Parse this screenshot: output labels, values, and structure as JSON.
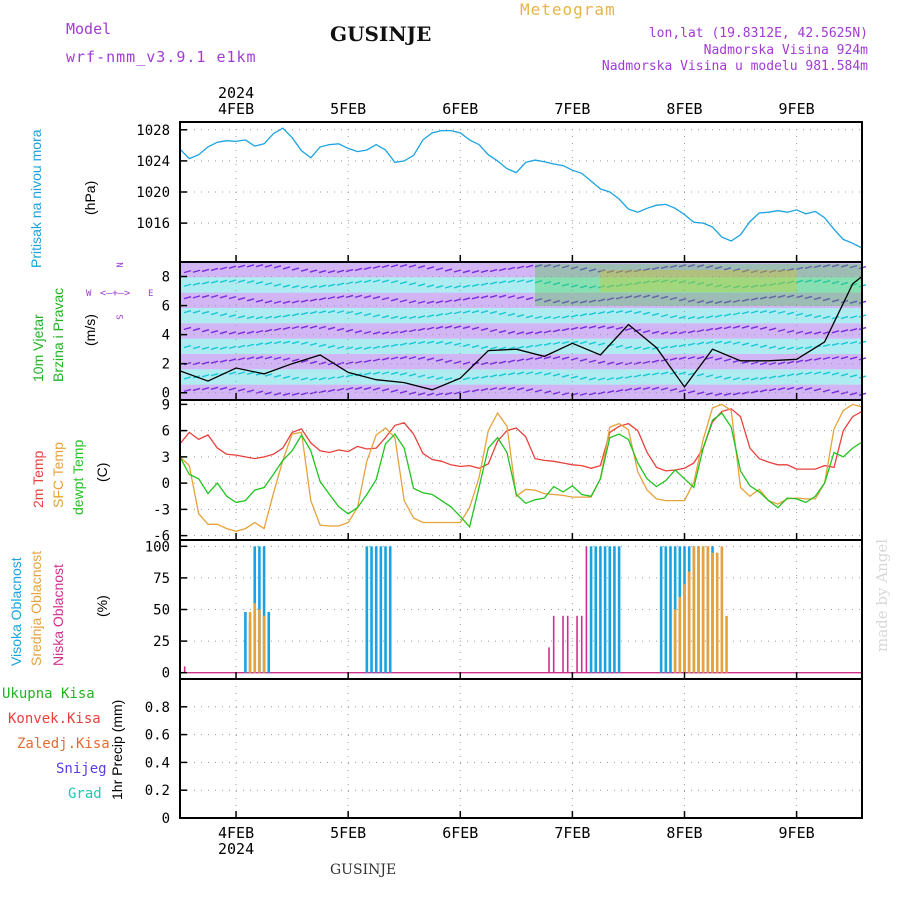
{
  "header": {
    "model_label": "Model",
    "model_name": "wrf-nmm_v3.9.1  e1km",
    "title": "GUSINJE",
    "meteogram_label": "Meteogram",
    "lonlat": "lon,lat (19.8312E, 42.5625N)",
    "altitude": "Nadmorska Visina 924m",
    "model_altitude": "Nadmorska Visina u modelu 981.584m",
    "footer_title": "GUSINJE",
    "credit": "made by Angel"
  },
  "compass": {
    "north": "N",
    "south": "S",
    "east": "E",
    "west": "W"
  },
  "colors": {
    "pressure": "#1aa3e0",
    "temp2m": "#e8413c",
    "sfc": "#e6a23c",
    "dew": "#22c322",
    "high": "#1aa3e0",
    "mid": "#e6a23c",
    "low": "#d0308c",
    "total": "#22b322",
    "convective": "#e8413c",
    "freezing": "#e66b2e",
    "snow": "#5a3de8",
    "hail": "#1ec8b4",
    "wind_low": "#7a2be0",
    "wind_mid": "#19c8d8",
    "wind_high": "#3cc83c",
    "wind_max": "#d8c81e"
  },
  "axis": {
    "year": "2024",
    "days": [
      "4FEB",
      "5FEB",
      "6FEB",
      "7FEB",
      "8FEB",
      "9FEB"
    ]
  },
  "panels": {
    "pressure": {
      "label_1": "Pritisak na nivou mora",
      "unit": "(hPa)"
    },
    "wind": {
      "label_1": "10m Vjetar",
      "label_2": "Brzina i Pravac",
      "unit": "(m/s)"
    },
    "temp": {
      "label_1": "2m Temp",
      "label_2": "SFC Temp",
      "label_3": "dewpt Temp",
      "unit": "(C)"
    },
    "cloud": {
      "label_1": "Visoka Oblacnost",
      "label_2": "Srednja Oblacnost",
      "label_3": "Niska Oblacnost",
      "unit": "(%)"
    },
    "precip": {
      "label_total": "Ukupna Kisa",
      "label_conv": "Konvek.Kisa",
      "label_freeze": "Zaledj.Kisa",
      "label_snow": "Snijeg",
      "label_hail": "Grad",
      "unit": "1hr Precip (mm)"
    }
  },
  "chart_data": [
    {
      "type": "line",
      "panel": "pressure",
      "x_unit": "hours from 3FEB 12:00",
      "ylabel": "(hPa)",
      "ylim": [
        1011,
        1029
      ],
      "yticks": [
        1016,
        1020,
        1024,
        1028
      ],
      "series": [
        {
          "name": "Pritisak na nivou mora",
          "x": [
            0,
            2,
            4,
            6,
            8,
            10,
            12,
            14,
            16,
            18,
            20,
            22,
            24,
            26,
            28,
            30,
            32,
            34,
            36,
            38,
            40,
            42,
            44,
            46,
            48,
            50,
            52,
            54,
            56,
            58,
            60,
            62,
            64,
            66,
            68,
            70,
            72,
            74,
            76,
            78,
            80,
            82,
            84,
            86,
            88,
            90,
            92,
            94,
            96,
            98,
            100,
            102,
            104,
            106,
            108,
            110,
            112,
            114,
            116,
            118,
            120,
            122,
            124,
            126,
            128,
            130,
            132,
            134,
            136,
            138,
            140,
            142,
            144,
            146
          ],
          "values": [
            1025.5,
            1024.3,
            1024.8,
            1025.8,
            1026.4,
            1026.6,
            1026.5,
            1026.7,
            1025.9,
            1026.2,
            1027.5,
            1028.2,
            1027.0,
            1025.3,
            1024.4,
            1025.8,
            1026.1,
            1026.2,
            1025.6,
            1025.2,
            1025.4,
            1026.1,
            1025.4,
            1023.8,
            1024.0,
            1024.7,
            1026.7,
            1027.6,
            1027.9,
            1027.9,
            1027.6,
            1026.7,
            1026.1,
            1024.8,
            1024.0,
            1023.0,
            1022.5,
            1023.8,
            1024.1,
            1023.9,
            1023.6,
            1023.4,
            1022.8,
            1022.4,
            1021.4,
            1020.4,
            1020.0,
            1019.1,
            1017.8,
            1017.4,
            1017.9,
            1018.3,
            1018.4,
            1017.9,
            1017.1,
            1016.1,
            1016.0,
            1015.5,
            1014.2,
            1013.7,
            1014.5,
            1016.2,
            1017.3,
            1017.4,
            1017.6,
            1017.4,
            1017.7,
            1017.2,
            1017.5,
            1016.7,
            1015.2,
            1013.9,
            1013.4,
            1012.8
          ]
        }
      ]
    },
    {
      "type": "line",
      "panel": "wind",
      "x_unit": "hours from 3FEB 12:00",
      "ylabel": "(m/s)",
      "ylim": [
        -0.5,
        9
      ],
      "yticks": [
        0,
        2,
        4,
        6,
        8
      ],
      "series": [
        {
          "name": "10m Vjetar",
          "x": [
            0,
            6,
            12,
            18,
            24,
            30,
            36,
            42,
            48,
            54,
            60,
            66,
            72,
            78,
            84,
            90,
            96,
            102,
            108,
            114,
            120,
            126,
            132,
            138,
            144,
            146
          ],
          "values": [
            1.5,
            0.8,
            1.7,
            1.3,
            2.0,
            2.6,
            1.4,
            0.9,
            0.7,
            0.2,
            1.0,
            2.9,
            3.0,
            2.5,
            3.4,
            2.6,
            4.7,
            3.1,
            0.4,
            3.0,
            2.2,
            2.2,
            2.3,
            3.5,
            7.5,
            8.0
          ]
        }
      ]
    },
    {
      "type": "line",
      "panel": "temp",
      "x_unit": "hours from 3FEB 12:00",
      "ylabel": "(C)",
      "ylim": [
        -6.5,
        9.5
      ],
      "yticks": [
        -6,
        -3,
        0,
        3,
        6,
        9
      ],
      "series": [
        {
          "name": "2m Temp",
          "x": [
            0,
            2,
            4,
            6,
            8,
            10,
            12,
            14,
            16,
            18,
            20,
            22,
            24,
            26,
            28,
            30,
            32,
            34,
            36,
            38,
            40,
            42,
            44,
            46,
            48,
            50,
            52,
            54,
            56,
            58,
            60,
            62,
            64,
            66,
            68,
            70,
            72,
            74,
            76,
            78,
            80,
            82,
            84,
            86,
            88,
            90,
            92,
            94,
            96,
            98,
            100,
            102,
            104,
            106,
            108,
            110,
            112,
            114,
            116,
            118,
            120,
            122,
            124,
            126,
            128,
            130,
            132,
            134,
            136,
            138,
            140,
            142,
            144,
            146
          ],
          "values": [
            4.5,
            5.8,
            5.0,
            5.5,
            4.0,
            3.3,
            3.2,
            3.0,
            2.8,
            3.0,
            3.3,
            4.0,
            5.8,
            6.2,
            4.6,
            3.7,
            3.5,
            3.8,
            3.6,
            4.2,
            3.9,
            4.0,
            5.2,
            6.6,
            6.9,
            5.6,
            3.4,
            2.7,
            2.5,
            2.1,
            1.9,
            2.0,
            1.7,
            2.2,
            4.8,
            6.0,
            6.3,
            5.3,
            2.8,
            2.6,
            2.5,
            2.3,
            2.1,
            2.0,
            1.7,
            2.0,
            5.8,
            6.5,
            6.8,
            6.0,
            3.5,
            1.8,
            1.4,
            1.5,
            1.7,
            2.3,
            4.0,
            7.0,
            8.2,
            8.5,
            7.6,
            4.0,
            2.8,
            2.4,
            2.1,
            2.1,
            1.6,
            1.6,
            1.6,
            2.0,
            1.8,
            6.0,
            7.6,
            8.2
          ]
        },
        {
          "name": "SFC Temp",
          "x": [
            0,
            2,
            4,
            6,
            8,
            10,
            12,
            14,
            16,
            18,
            20,
            22,
            24,
            26,
            28,
            30,
            32,
            34,
            36,
            38,
            40,
            42,
            44,
            46,
            48,
            50,
            52,
            54,
            56,
            58,
            60,
            62,
            64,
            66,
            68,
            70,
            72,
            74,
            76,
            78,
            80,
            82,
            84,
            86,
            88,
            90,
            92,
            94,
            96,
            98,
            100,
            102,
            104,
            106,
            108,
            110,
            112,
            114,
            116,
            118,
            120,
            122,
            124,
            126,
            128,
            130,
            132,
            134,
            136,
            138,
            140,
            142,
            144,
            146
          ],
          "values": [
            3.0,
            2.0,
            -3.5,
            -4.7,
            -4.7,
            -5.2,
            -5.5,
            -5.2,
            -4.5,
            -5.2,
            -1.2,
            2.6,
            5.6,
            5.8,
            -2.0,
            -4.8,
            -4.9,
            -4.9,
            -4.5,
            -2.8,
            2.5,
            5.5,
            6.3,
            5.2,
            -2.0,
            -4.0,
            -4.5,
            -4.5,
            -4.5,
            -4.5,
            -4.5,
            -2.8,
            0.6,
            6.0,
            8.0,
            6.5,
            -1.5,
            -0.7,
            -0.8,
            -1.2,
            -1.3,
            -1.4,
            -1.6,
            -1.6,
            -1.6,
            0.5,
            6.4,
            6.8,
            6.1,
            1.3,
            -0.8,
            -1.8,
            -2.0,
            -2.0,
            -2.0,
            0.1,
            5.0,
            8.6,
            9.0,
            8.3,
            -0.5,
            -1.5,
            -0.7,
            -2.0,
            -2.4,
            -1.8,
            -1.7,
            -1.8,
            -1.8,
            0.0,
            6.2,
            8.3,
            9.0,
            8.7
          ]
        },
        {
          "name": "dewpt Temp",
          "x": [
            0,
            2,
            4,
            6,
            8,
            10,
            12,
            14,
            16,
            18,
            20,
            22,
            24,
            26,
            28,
            30,
            32,
            34,
            36,
            38,
            40,
            42,
            44,
            46,
            48,
            50,
            52,
            54,
            56,
            58,
            60,
            62,
            64,
            66,
            68,
            70,
            72,
            74,
            76,
            78,
            80,
            82,
            84,
            86,
            88,
            90,
            92,
            94,
            96,
            98,
            100,
            102,
            104,
            106,
            108,
            110,
            112,
            114,
            116,
            118,
            120,
            122,
            124,
            126,
            128,
            130,
            132,
            134,
            136,
            138,
            140,
            142,
            144,
            146
          ],
          "values": [
            3.0,
            1.0,
            0.5,
            -1.2,
            0.0,
            -1.5,
            -2.2,
            -2.0,
            -0.8,
            -0.5,
            1.0,
            2.6,
            3.7,
            5.5,
            3.7,
            0.2,
            -1.3,
            -2.7,
            -3.5,
            -2.8,
            -1.3,
            0.4,
            4.5,
            5.6,
            4.0,
            -0.6,
            -1.1,
            -1.3,
            -2.0,
            -2.7,
            -3.8,
            -5.0,
            -0.5,
            4.0,
            5.2,
            3.5,
            -1.3,
            -2.3,
            -1.9,
            -1.7,
            -0.4,
            -1.0,
            -0.3,
            -1.3,
            -1.5,
            0.5,
            5.2,
            5.6,
            5.0,
            2.3,
            0.5,
            -0.4,
            0.3,
            1.5,
            0.5,
            -0.5,
            4.0,
            7.2,
            8.0,
            6.4,
            1.4,
            -0.3,
            -1.0,
            -2.0,
            -2.8,
            -1.7,
            -1.8,
            -2.2,
            -1.5,
            0.0,
            3.5,
            3.0,
            4.0,
            4.7
          ]
        }
      ]
    },
    {
      "type": "bar",
      "panel": "cloud",
      "x_unit": "hours from 3FEB 12:00",
      "ylabel": "(%)",
      "ylim": [
        -5,
        105
      ],
      "yticks": [
        0,
        25,
        50,
        75,
        100
      ],
      "series": [
        {
          "name": "Visoka Oblacnost",
          "x": [
            14,
            15,
            16,
            17,
            18,
            19,
            40,
            41,
            42,
            43,
            44,
            45,
            88,
            89,
            90,
            91,
            92,
            93,
            94,
            103,
            104,
            105,
            106,
            107,
            108,
            109,
            110,
            111,
            112,
            113,
            114
          ],
          "values": [
            48,
            40,
            100,
            100,
            100,
            48,
            100,
            100,
            100,
            100,
            100,
            100,
            100,
            100,
            100,
            100,
            100,
            100,
            100,
            100,
            100,
            100,
            100,
            100,
            100,
            100,
            100,
            100,
            100,
            100,
            100
          ]
        },
        {
          "name": "Srednja Oblacnost",
          "x": [
            15,
            16,
            17,
            18,
            106,
            107,
            108,
            109,
            110,
            111,
            112,
            113,
            114,
            115,
            116,
            117
          ],
          "values": [
            48,
            55,
            50,
            45,
            50,
            60,
            70,
            80,
            100,
            100,
            100,
            100,
            95,
            95,
            100,
            45
          ]
        },
        {
          "name": "Niska Oblacnost",
          "x": [
            1,
            79,
            80,
            82,
            83,
            85,
            86,
            87
          ],
          "values": [
            5,
            20,
            45,
            45,
            45,
            45,
            45,
            100
          ]
        }
      ]
    },
    {
      "type": "bar",
      "panel": "precip",
      "x_unit": "hours from 3FEB 12:00",
      "ylabel": "1hr Precip (mm)",
      "ylim": [
        0,
        1.0
      ],
      "yticks": [
        0,
        0.2,
        0.4,
        0.6,
        0.8
      ],
      "series": [
        {
          "name": "Ukupna Kisa",
          "x": [],
          "values": []
        },
        {
          "name": "Konvek.Kisa",
          "x": [],
          "values": []
        },
        {
          "name": "Zaledj.Kisa",
          "x": [],
          "values": []
        },
        {
          "name": "Snijeg",
          "x": [],
          "values": []
        },
        {
          "name": "Grad",
          "x": [],
          "values": []
        }
      ]
    }
  ]
}
